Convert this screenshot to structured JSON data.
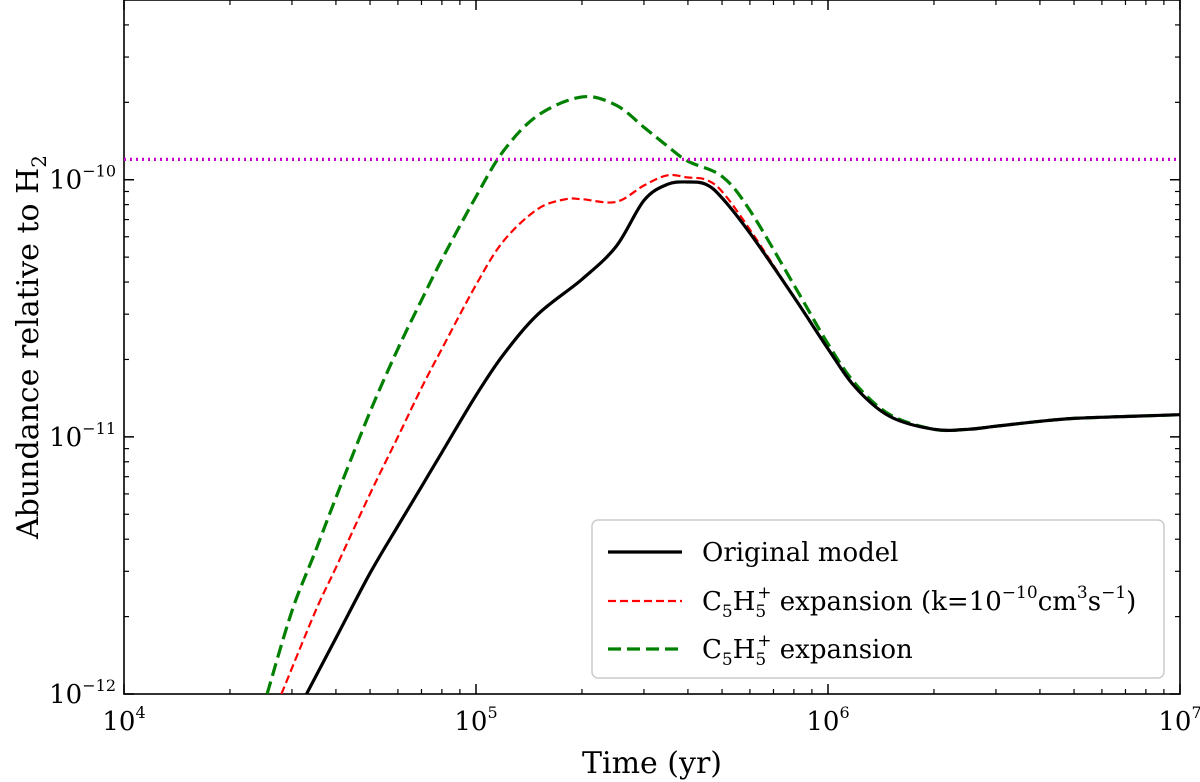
{
  "chart_data": {
    "type": "line",
    "title": "",
    "xlabel": "Time (yr)",
    "ylabel": "Abundance relative to H",
    "ylabel_subscript": "2",
    "xscale": "log",
    "yscale": "log",
    "xlim": [
      10000,
      10000000
    ],
    "ylim": [
      1e-12,
      5e-10
    ],
    "xticks": [
      {
        "value": 10000,
        "base": "10",
        "exp": "4"
      },
      {
        "value": 100000,
        "base": "10",
        "exp": "5"
      },
      {
        "value": 1000000,
        "base": "10",
        "exp": "6"
      },
      {
        "value": 10000000,
        "base": "10",
        "exp": "7"
      }
    ],
    "yticks": [
      {
        "value": 1e-12,
        "base": "10",
        "exp": "−12"
      },
      {
        "value": 1e-11,
        "base": "10",
        "exp": "−11"
      },
      {
        "value": 1e-10,
        "base": "10",
        "exp": "−10"
      }
    ],
    "legend_position": "lower-right",
    "reference_line": {
      "value": 1.2e-10,
      "color": "#cc00cc",
      "style": "dotted"
    },
    "series": [
      {
        "name": "Original model",
        "color": "#000000",
        "style": "solid",
        "x": [
          33000,
          40000,
          50000,
          60000,
          70000,
          80000,
          100000,
          120000,
          150000,
          200000,
          250000,
          300000,
          350000,
          400000,
          450000,
          500000,
          600000,
          800000,
          1000000,
          1200000,
          1500000,
          2000000,
          2500000,
          3000000,
          4000000,
          5000000,
          7000000,
          10000000
        ],
        "values": [
          1e-12,
          1.65e-12,
          2.95e-12,
          4.5e-12,
          6.4e-12,
          8.7e-12,
          1.45e-11,
          2.1e-11,
          3e-11,
          4.1e-11,
          5.5e-11,
          8.3e-11,
          9.6e-11,
          9.8e-11,
          9.6e-11,
          8.5e-11,
          6.2e-11,
          3.5e-11,
          2.2e-11,
          1.55e-11,
          1.2e-11,
          1.07e-11,
          1.07e-11,
          1.1e-11,
          1.15e-11,
          1.18e-11,
          1.2e-11,
          1.22e-11
        ]
      },
      {
        "name": "C5H5+ expansion (k=10^-10 cm^3 s^-1)",
        "color": "#ff0000",
        "style": "dashed",
        "x": [
          28000,
          35000,
          40000,
          50000,
          60000,
          70000,
          80000,
          100000,
          120000,
          150000,
          180000,
          200000,
          250000,
          300000,
          350000,
          400000,
          450000,
          500000,
          600000,
          800000,
          1000000,
          1200000,
          1500000,
          2000000,
          2500000,
          3000000,
          4000000,
          5000000,
          7000000,
          10000000
        ],
        "values": [
          1e-12,
          2.1e-12,
          3.1e-12,
          6e-12,
          1e-11,
          1.55e-11,
          2.2e-11,
          3.9e-11,
          5.8e-11,
          7.7e-11,
          8.4e-11,
          8.4e-11,
          8.2e-11,
          9.5e-11,
          1.04e-10,
          1.02e-10,
          1e-10,
          9e-11,
          6.4e-11,
          3.5e-11,
          2.2e-11,
          1.55e-11,
          1.2e-11,
          1.07e-11,
          1.07e-11,
          1.1e-11,
          1.15e-11,
          1.18e-11,
          1.2e-11,
          1.22e-11
        ]
      },
      {
        "name": "C5H5+ expansion",
        "color": "#008000",
        "style": "dashed",
        "x": [
          25500,
          30000,
          35000,
          40000,
          50000,
          60000,
          70000,
          80000,
          100000,
          120000,
          150000,
          200000,
          250000,
          300000,
          350000,
          400000,
          500000,
          600000,
          800000,
          1000000,
          1200000,
          1500000,
          2000000,
          2500000,
          3000000,
          4000000,
          5000000,
          7000000,
          10000000
        ],
        "values": [
          1e-12,
          2.1e-12,
          3.6e-12,
          5.8e-12,
          1.25e-11,
          2.2e-11,
          3.4e-11,
          4.9e-11,
          8.6e-11,
          1.3e-10,
          1.78e-10,
          2.1e-10,
          1.95e-10,
          1.6e-10,
          1.35e-10,
          1.18e-10,
          1.03e-10,
          7.6e-11,
          3.9e-11,
          2.3e-11,
          1.6e-11,
          1.22e-11,
          1.07e-11,
          1.07e-11,
          1.1e-11,
          1.15e-11,
          1.18e-11,
          1.2e-11,
          1.22e-11
        ]
      }
    ]
  }
}
